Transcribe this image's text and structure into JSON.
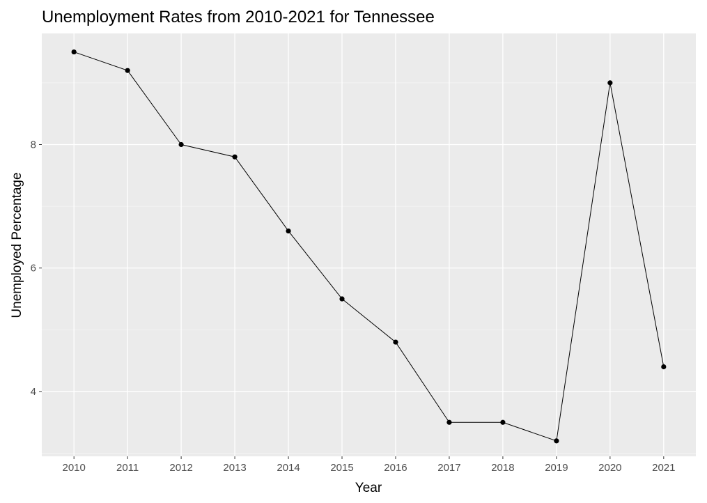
{
  "chart_data": {
    "type": "line",
    "title": "Unemployment Rates from 2010-2021 for Tennessee",
    "xlabel": "Year",
    "ylabel": "Unemployed Percentage",
    "x": [
      "2010",
      "2011",
      "2012",
      "2013",
      "2014",
      "2015",
      "2016",
      "2017",
      "2018",
      "2019",
      "2020",
      "2021"
    ],
    "series": [
      {
        "values": [
          9.5,
          9.2,
          8.0,
          7.8,
          6.6,
          5.5,
          4.8,
          3.5,
          3.5,
          3.2,
          9.0,
          4.4
        ]
      }
    ],
    "y_ticks": [
      4,
      6,
      8
    ],
    "ylim": [
      2.95,
      9.8
    ],
    "grid": true,
    "legend": "none",
    "colors": {
      "panel_background": "#ebebeb",
      "grid_major": "#ffffff",
      "grid_minor": "#f5f5f5",
      "line": "#000000",
      "point": "#000000",
      "tick_text": "#4d4d4d",
      "tick_mark": "#333333"
    }
  }
}
